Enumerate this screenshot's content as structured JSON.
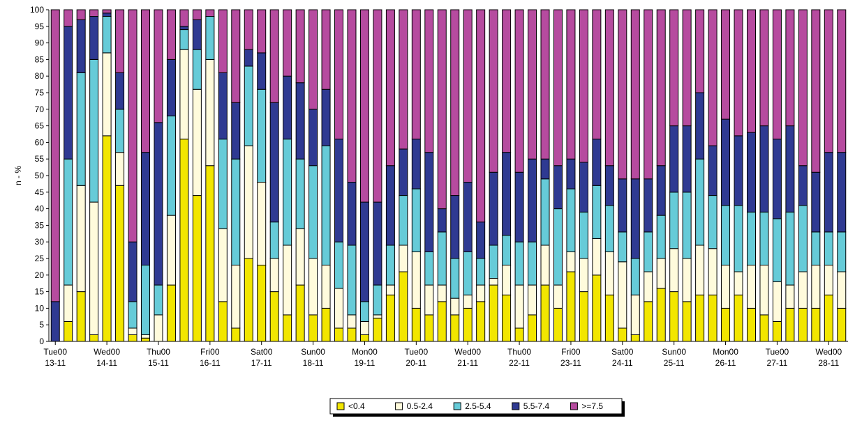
{
  "chart_data": {
    "type": "stacked_bar",
    "y_label": "n - %",
    "categories": [
      "Tue00 13-11",
      null,
      null,
      null,
      "Wed00 14-11",
      null,
      null,
      null,
      "Thu00 15-11",
      null,
      null,
      null,
      "Fri00 16-11",
      null,
      null,
      null,
      "Sat00 17-11",
      null,
      null,
      null,
      "Sun00 18-11",
      null,
      null,
      null,
      "Mon00 19-11",
      null,
      null,
      null,
      "Tue00 20-11",
      null,
      null,
      null,
      "Wed00 21-11",
      null,
      null,
      null,
      "Thu00 22-11",
      null,
      null,
      null,
      "Fri00 23-11",
      null,
      null,
      null,
      "Sat00 24-11",
      null,
      null,
      null,
      "Sun00 25-11",
      null,
      null,
      null,
      "Mon00 26-11",
      null,
      null,
      null,
      "Tue00 27-11",
      null,
      null,
      null,
      "Wed00 28-11",
      null
    ],
    "series": [
      {
        "name": "<0.4",
        "color": "#f2e600",
        "values": [
          0,
          6,
          15,
          2,
          62,
          47,
          2,
          1,
          0,
          17,
          61,
          44,
          53,
          12,
          4,
          25,
          23,
          15,
          8,
          17,
          8,
          10,
          4,
          4,
          2,
          7,
          14,
          21,
          10,
          8,
          12,
          8,
          10,
          12,
          17,
          14,
          4,
          8,
          17,
          10,
          21,
          15,
          20,
          14,
          4,
          2,
          12,
          16,
          15,
          12,
          14,
          14,
          10,
          14,
          10,
          8,
          6,
          10,
          10,
          10,
          14,
          10
        ]
      },
      {
        "name": "0.5-2.4",
        "color": "#fffbdc",
        "values": [
          0,
          11,
          32,
          40,
          25,
          10,
          2,
          1,
          8,
          21,
          27,
          32,
          32,
          22,
          19,
          34,
          25,
          10,
          21,
          17,
          17,
          13,
          12,
          4,
          4,
          1,
          3,
          8,
          17,
          9,
          5,
          5,
          4,
          5,
          2,
          9,
          13,
          9,
          12,
          7,
          6,
          10,
          11,
          13,
          20,
          12,
          9,
          9,
          13,
          13,
          15,
          14,
          13,
          7,
          13,
          15,
          12,
          7,
          11,
          13,
          9,
          11
        ]
      },
      {
        "name": "2.5-5.4",
        "color": "#66cbd8",
        "values": [
          0,
          38,
          34,
          43,
          11,
          13,
          8,
          21,
          9,
          30,
          6,
          12,
          13,
          27,
          32,
          24,
          28,
          11,
          32,
          21,
          28,
          36,
          14,
          21,
          6,
          9,
          12,
          15,
          19,
          10,
          16,
          12,
          13,
          8,
          10,
          9,
          13,
          13,
          20,
          23,
          19,
          14,
          16,
          14,
          9,
          11,
          12,
          13,
          17,
          20,
          26,
          16,
          18,
          20,
          16,
          16,
          19,
          22,
          20,
          10,
          10,
          12
        ]
      },
      {
        "name": "5.5-7.4",
        "color": "#2f3a92",
        "values": [
          12,
          40,
          16,
          13,
          1,
          11,
          18,
          34,
          49,
          17,
          1,
          9,
          0,
          20,
          17,
          5,
          11,
          36,
          19,
          23,
          17,
          17,
          31,
          19,
          30,
          25,
          24,
          14,
          15,
          30,
          7,
          19,
          21,
          11,
          22,
          25,
          21,
          25,
          6,
          13,
          9,
          15,
          14,
          12,
          16,
          24,
          16,
          15,
          20,
          20,
          20,
          15,
          26,
          21,
          24,
          26,
          24,
          26,
          12,
          18,
          24,
          24
        ]
      },
      {
        "name": ">=7.5",
        "color": "#b64b9f",
        "values": [
          88,
          5,
          3,
          2,
          1,
          19,
          70,
          43,
          34,
          15,
          5,
          3,
          2,
          19,
          28,
          12,
          13,
          28,
          20,
          22,
          30,
          24,
          39,
          52,
          58,
          58,
          47,
          42,
          39,
          43,
          60,
          56,
          52,
          64,
          49,
          43,
          49,
          45,
          45,
          47,
          45,
          46,
          39,
          47,
          51,
          51,
          51,
          47,
          35,
          35,
          25,
          41,
          33,
          38,
          37,
          35,
          39,
          35,
          47,
          49,
          43,
          43
        ]
      }
    ],
    "ylim": [
      0,
      100
    ],
    "yticks": [
      0,
      5,
      10,
      15,
      20,
      25,
      30,
      35,
      40,
      45,
      50,
      55,
      60,
      65,
      70,
      75,
      80,
      85,
      90,
      95,
      100
    ],
    "legend": "bottom"
  }
}
